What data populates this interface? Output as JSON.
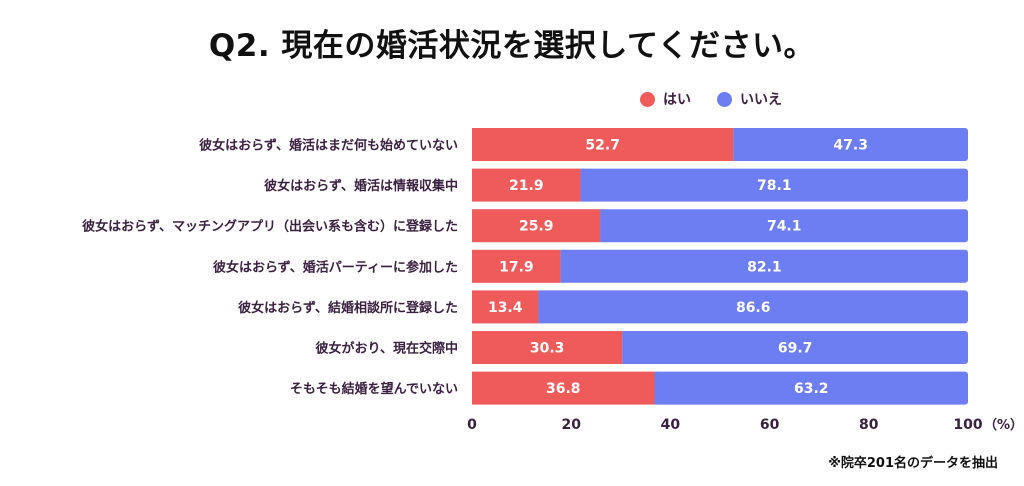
{
  "header": {
    "title": "Q2. 現在の婚活状況を選択してください。"
  },
  "legend": {
    "items": [
      {
        "label": "はい",
        "color": "#EF5B5B"
      },
      {
        "label": "いいえ",
        "color": "#6D7EF2"
      }
    ]
  },
  "footer": {
    "note": "※院卒201名のデータを抽出"
  },
  "chart_data": {
    "type": "bar",
    "orientation": "horizontal",
    "stacked": true,
    "categories": [
      "彼女はおらず、婚活はまだ何も始めていない",
      "彼女はおらず、婚活は情報収集中",
      "彼女はおらず、マッチングアプリ（出会い系も含む）に登録した",
      "彼女はおらず、婚活パーティーに参加した",
      "彼女はおらず、結婚相談所に登録した",
      "彼女がおり、現在交際中",
      "そもそも結婚を望んでいない"
    ],
    "series": [
      {
        "name": "はい",
        "color": "#EF5B5B",
        "values": [
          52.7,
          21.9,
          25.9,
          17.9,
          13.4,
          30.3,
          36.8
        ]
      },
      {
        "name": "いいえ",
        "color": "#6D7EF2",
        "values": [
          47.3,
          78.1,
          74.1,
          82.1,
          86.6,
          69.7,
          63.2
        ]
      }
    ],
    "xlim": [
      0,
      100
    ],
    "xticks": [
      0,
      20,
      40,
      60,
      80,
      100
    ],
    "xticklabels": [
      "0",
      "20",
      "40",
      "60",
      "80",
      "100"
    ],
    "xunit": "（%）",
    "grid": false,
    "legend_position": "top-right"
  }
}
